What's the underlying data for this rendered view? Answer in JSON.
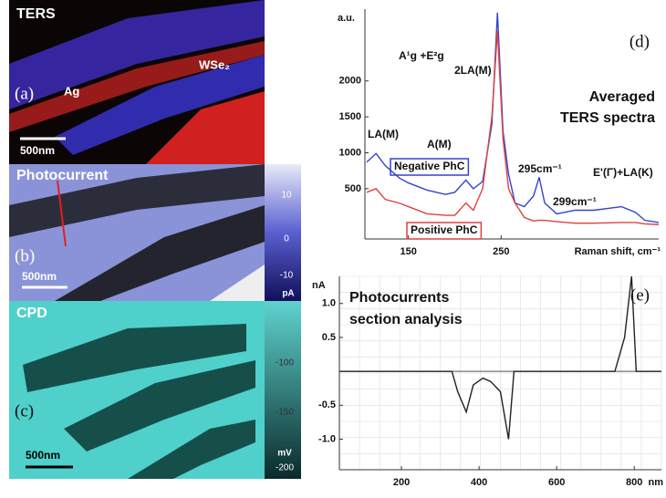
{
  "panels": [
    {
      "title": "TERS",
      "tag": "(a)",
      "labels": [
        "WSe₂",
        "Ag"
      ],
      "scale": "500nm"
    },
    {
      "title": "Photocurrent",
      "tag": "(b)",
      "scale": "500nm",
      "colorbar": [
        "10",
        "0",
        "-10",
        "pA"
      ]
    },
    {
      "title": "CPD",
      "tag": "(c)",
      "scale": "500nm",
      "colorbar": [
        "-100",
        "-150",
        "mV",
        "-200"
      ]
    }
  ],
  "chart_data": [
    {
      "type": "line",
      "tag": "(d)",
      "ylabel": "a.u.",
      "xlabel": "Raman shift, cm⁻¹",
      "title": [
        "Averaged",
        "TERS spectra"
      ],
      "annotations": [
        "LA(M)",
        "A¹g +E²g",
        "2LA(M)",
        "A(M)",
        "295cm⁻¹",
        "299cm⁻¹",
        "E'(Γ)+LA(K)"
      ],
      "x": [
        105,
        115,
        125,
        140,
        150,
        170,
        190,
        200,
        212,
        220,
        230,
        240,
        246,
        252,
        258,
        265,
        275,
        285,
        291,
        297,
        310,
        330,
        350,
        380,
        395,
        405,
        420
      ],
      "series": [
        {
          "name": "Negative PhC",
          "color": "#3344cc",
          "values": [
            870,
            990,
            820,
            650,
            580,
            480,
            420,
            450,
            620,
            500,
            600,
            1400,
            2950,
            1300,
            700,
            300,
            250,
            400,
            660,
            300,
            150,
            200,
            200,
            250,
            170,
            60,
            30
          ]
        },
        {
          "name": "Positive PhC",
          "color": "#e04040",
          "values": [
            450,
            500,
            350,
            300,
            250,
            150,
            130,
            130,
            300,
            200,
            500,
            1500,
            2700,
            1200,
            500,
            300,
            100,
            50,
            60,
            60,
            40,
            20,
            20,
            30,
            30,
            10,
            0
          ]
        }
      ],
      "xlim": [
        103,
        420
      ],
      "ylim": [
        -200,
        3000
      ],
      "xticks": [
        150,
        250
      ],
      "yticks": [
        500,
        1000,
        1500,
        2000
      ]
    },
    {
      "type": "line",
      "tag": "(e)",
      "ylabel": "nA",
      "xlabel": "nm",
      "title": [
        "Photocurrents",
        "section analysis"
      ],
      "x": [
        40,
        330,
        345,
        367,
        385,
        410,
        430,
        455,
        476,
        490,
        750,
        775,
        793,
        805,
        870
      ],
      "series": [
        {
          "color": "#222222",
          "values": [
            0,
            0,
            -0.3,
            -0.6,
            -0.2,
            -0.1,
            -0.15,
            -0.3,
            -1.0,
            0,
            0,
            0.5,
            1.4,
            0,
            0
          ]
        }
      ],
      "xlim": [
        40,
        870
      ],
      "ylim": [
        -1.45,
        1.4
      ],
      "xticks": [
        200,
        400,
        600,
        800
      ],
      "yticks": [
        {
          "value": 1,
          "label": "1.0"
        },
        0.5,
        -0.5,
        {
          "value": -1,
          "label": "-1.0"
        }
      ],
      "grid": true
    }
  ]
}
